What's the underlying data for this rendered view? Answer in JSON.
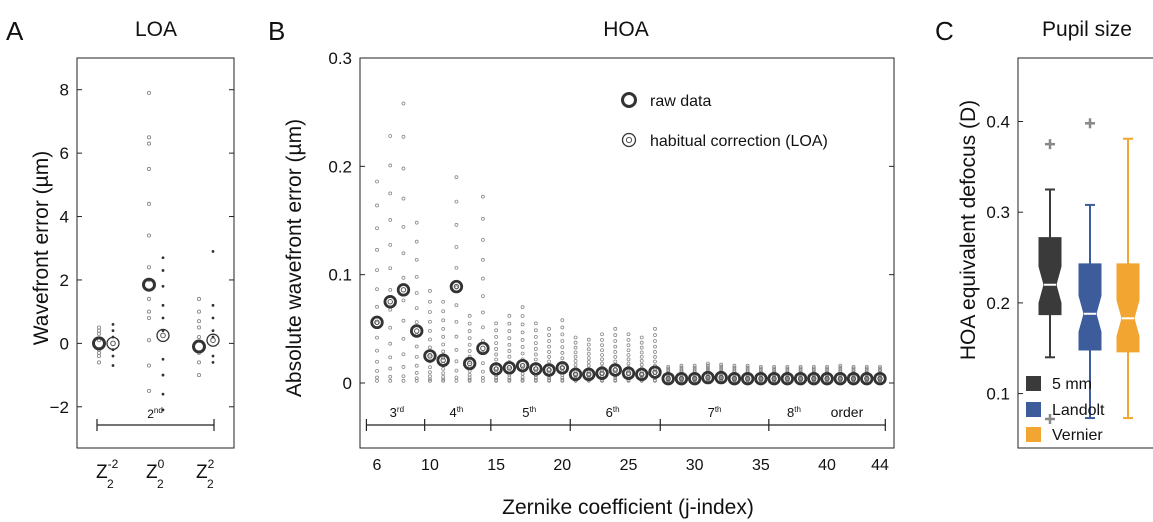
{
  "colors": {
    "raw": "#333333",
    "points": "#8a8a8a",
    "box_5mm": "#3a3a3a",
    "box_landolt": "#3c5c9c",
    "box_vernier": "#f2a531",
    "outlier": "#888888"
  },
  "panel_a": {
    "letter": "A",
    "title": "LOA",
    "ylabel": "Wavefront error (µm)",
    "bracket_label": "2",
    "bracket_sup": "nd"
  },
  "panel_b": {
    "letter": "B",
    "title": "HOA",
    "ylabel": "Absolute wavefront error (µm)",
    "xlabel": "Zernike coefficient (j-index)",
    "legend": [
      "raw data",
      "habitual correction (LOA)"
    ],
    "order_word": "order",
    "orders": [
      {
        "num": "3",
        "sup": "rd"
      },
      {
        "num": "4",
        "sup": "th"
      },
      {
        "num": "5",
        "sup": "th"
      },
      {
        "num": "6",
        "sup": "th"
      },
      {
        "num": "7",
        "sup": "th"
      },
      {
        "num": "8",
        "sup": "th"
      }
    ]
  },
  "panel_c": {
    "letter": "C",
    "title": "Pupil size",
    "ylabel": "HOA equivalent defocus (D)",
    "legend": [
      "5 mm",
      "Landolt",
      "Vernier"
    ]
  },
  "chart_data": [
    {
      "type": "scatter",
      "title": "LOA",
      "ylabel": "Wavefront error (µm)",
      "categories": [
        "Z2-2",
        "Z20",
        "Z22"
      ],
      "category_labels": [
        {
          "base": "Z",
          "sub": "2",
          "sup": "-2"
        },
        {
          "base": "Z",
          "sub": "2",
          "sup": "0"
        },
        {
          "base": "Z",
          "sub": "2",
          "sup": "2"
        }
      ],
      "ylim": [
        -3.3,
        9
      ],
      "yticks": [
        -2,
        0,
        2,
        4,
        6,
        8
      ],
      "ytick_labels": [
        "−2",
        "0",
        "2",
        "4",
        "6",
        "8"
      ],
      "series": [
        {
          "name": "raw data",
          "values": [
            0.0,
            1.85,
            -0.1
          ]
        },
        {
          "name": "habitual correction (LOA)",
          "values": [
            0.0,
            0.25,
            0.1
          ]
        }
      ],
      "raw_spread": [
        [
          -0.6,
          -0.4,
          -0.2,
          0.1,
          0.3,
          0.5,
          0.4,
          -0.3
        ],
        [
          -1.5,
          -0.7,
          0.1,
          0.8,
          1.4,
          2.4,
          3.4,
          4.4,
          5.5,
          6.3,
          6.5,
          7.9,
          1.0,
          2.0
        ],
        [
          -1.0,
          -0.6,
          -0.3,
          0.2,
          0.5,
          1.0,
          1.4,
          0.7
        ]
      ],
      "corrected_spread": [
        [
          -0.7,
          -0.4,
          -0.2,
          0.2,
          0.4,
          0.6
        ],
        [
          -2.1,
          -1.6,
          -1.0,
          -0.5,
          0.4,
          0.8,
          1.2,
          1.8,
          2.3,
          2.7
        ],
        [
          -0.6,
          -0.4,
          0.2,
          0.4,
          0.8,
          1.2,
          2.9
        ]
      ]
    },
    {
      "type": "scatter",
      "title": "HOA",
      "xlabel": "Zernike coefficient (j-index)",
      "ylabel": "Absolute wavefront error (µm)",
      "xlim": [
        5,
        45
      ],
      "ylim": [
        -0.06,
        0.3
      ],
      "xticks": [
        6,
        10,
        15,
        20,
        25,
        30,
        35,
        40,
        44
      ],
      "yticks": [
        0,
        0.1,
        0.2,
        0.3
      ],
      "ytick_labels": [
        "0",
        "0.1",
        "0.2",
        "0.3"
      ],
      "x": [
        6,
        7,
        8,
        9,
        10,
        11,
        12,
        13,
        14,
        15,
        16,
        17,
        18,
        19,
        20,
        21,
        22,
        23,
        24,
        25,
        26,
        27,
        28,
        29,
        30,
        31,
        32,
        33,
        34,
        35,
        36,
        37,
        38,
        39,
        40,
        41,
        42,
        43,
        44
      ],
      "series": [
        {
          "name": "raw data",
          "values": [
            0.056,
            0.075,
            0.086,
            0.048,
            0.025,
            0.021,
            0.089,
            0.018,
            0.032,
            0.013,
            0.014,
            0.016,
            0.013,
            0.012,
            0.014,
            0.008,
            0.008,
            0.009,
            0.012,
            0.009,
            0.008,
            0.01,
            0.004,
            0.004,
            0.004,
            0.005,
            0.005,
            0.004,
            0.004,
            0.004,
            0.004,
            0.004,
            0.004,
            0.004,
            0.004,
            0.004,
            0.004,
            0.004,
            0.004
          ]
        },
        {
          "name": "habitual correction (LOA)",
          "values": [
            0.056,
            0.075,
            0.086,
            0.048,
            0.025,
            0.021,
            0.089,
            0.018,
            0.032,
            0.013,
            0.014,
            0.016,
            0.013,
            0.012,
            0.014,
            0.008,
            0.008,
            0.009,
            0.012,
            0.009,
            0.008,
            0.01,
            0.004,
            0.004,
            0.004,
            0.005,
            0.005,
            0.004,
            0.004,
            0.004,
            0.004,
            0.004,
            0.004,
            0.004,
            0.004,
            0.004,
            0.004,
            0.004,
            0.004
          ]
        }
      ],
      "spread_max": [
        0.186,
        0.228,
        0.258,
        0.148,
        0.085,
        0.075,
        0.19,
        0.062,
        0.172,
        0.055,
        0.062,
        0.07,
        0.055,
        0.05,
        0.058,
        0.042,
        0.04,
        0.045,
        0.05,
        0.045,
        0.042,
        0.05,
        0.015,
        0.016,
        0.016,
        0.018,
        0.017,
        0.016,
        0.016,
        0.015,
        0.015,
        0.015,
        0.015,
        0.015,
        0.015,
        0.016,
        0.015,
        0.015,
        0.015
      ],
      "order_boundaries": [
        5.2,
        9.6,
        14.6,
        20.6,
        27.4,
        35.6,
        44.4
      ],
      "order_label_x": [
        7.5,
        12,
        17.5,
        23.8,
        31.5,
        37.5
      ],
      "order_word_x": 41.5
    },
    {
      "type": "box",
      "title": "Pupil size",
      "ylabel": "HOA equivalent defocus (D)",
      "ylim": [
        0.04,
        0.47
      ],
      "yticks": [
        0.1,
        0.2,
        0.3,
        0.4
      ],
      "ytick_labels": [
        "0.1",
        "0.2",
        "0.3",
        "0.4"
      ],
      "series": [
        {
          "name": "5 mm",
          "whisker_low": 0.14,
          "q1": 0.187,
          "median": 0.22,
          "q3": 0.272,
          "whisker_high": 0.325,
          "outliers": [
            0.375,
            0.072
          ],
          "notch": [
            0.2,
            0.24
          ]
        },
        {
          "name": "Landolt",
          "whisker_low": 0.073,
          "q1": 0.148,
          "median": 0.188,
          "q3": 0.243,
          "whisker_high": 0.308,
          "outliers": [
            0.398
          ],
          "notch": [
            0.168,
            0.208
          ]
        },
        {
          "name": "Vernier",
          "whisker_low": 0.073,
          "q1": 0.146,
          "median": 0.183,
          "q3": 0.243,
          "whisker_high": 0.381,
          "outliers": [],
          "notch": [
            0.163,
            0.203
          ]
        }
      ]
    }
  ]
}
